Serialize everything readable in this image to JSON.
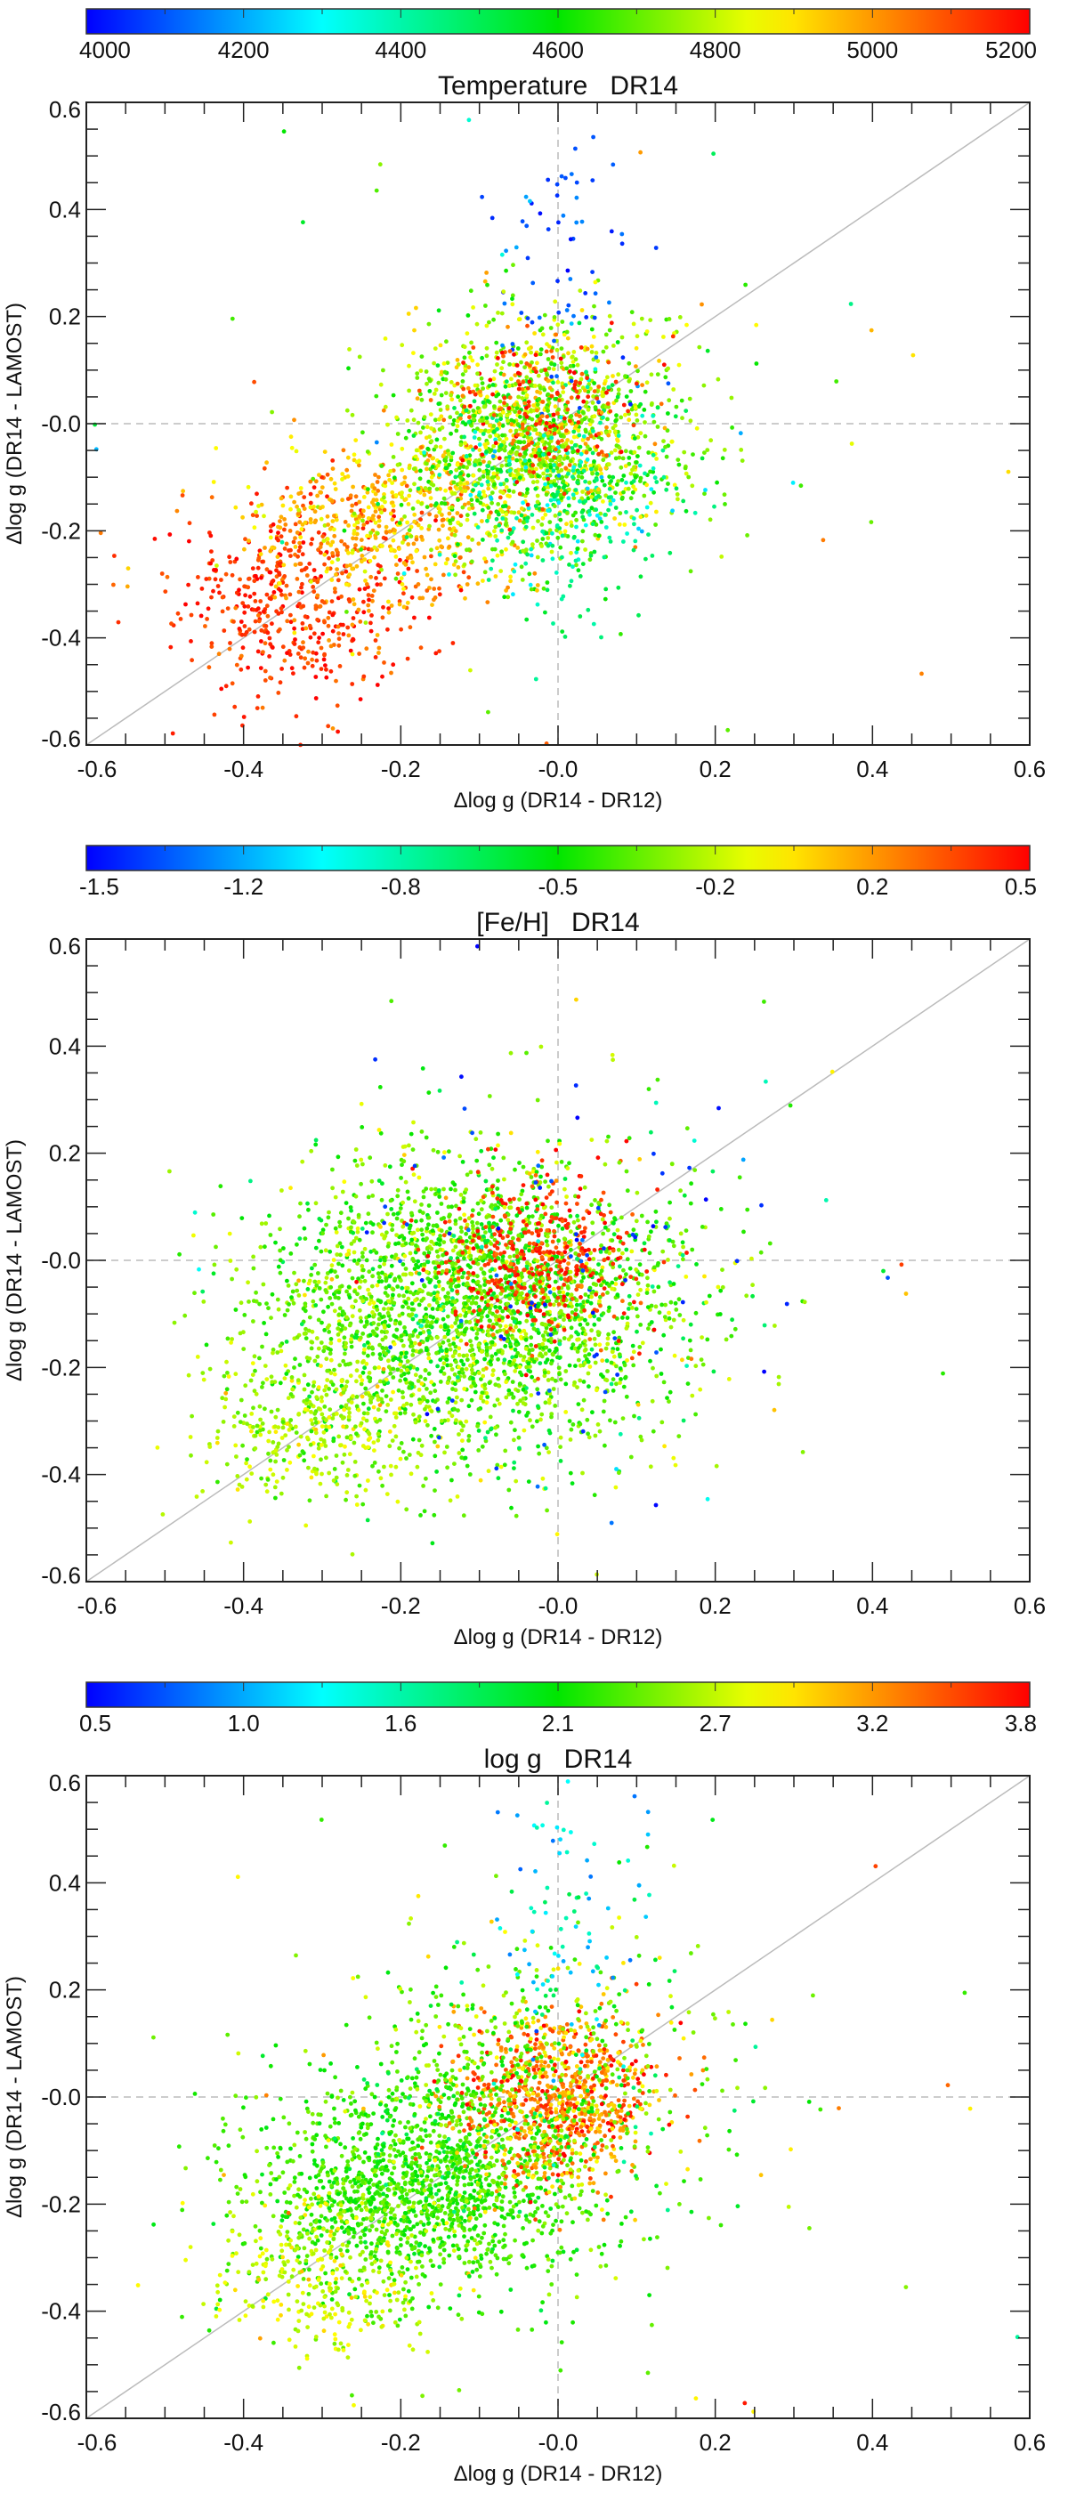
{
  "chart_data": [
    {
      "type": "scatter",
      "title": "Temperature   DR14",
      "xlabel": "Δlog g (DR14 - DR12)",
      "ylabel": "Δlog g (DR14 - LAMOST)",
      "xlim": [
        -0.6,
        0.6
      ],
      "ylim": [
        -0.6,
        0.6
      ],
      "xticks": [
        "-0.6",
        "-0.4",
        "-0.2",
        "-0.0",
        "0.2",
        "0.4",
        "0.6"
      ],
      "yticks": [
        "-0.6",
        "-0.4",
        "-0.2",
        "-0.0",
        "0.2",
        "0.4",
        "0.6"
      ],
      "grid": false,
      "reference_lines": [
        "y = x (solid gray)",
        "x = 0 (dashed gray)",
        "y = 0 (dashed gray)"
      ],
      "colorbar": {
        "label": "Temperature",
        "range": [
          4000,
          5200
        ],
        "ticks": [
          "4000",
          "4200",
          "4400",
          "4600",
          "4800",
          "5000",
          "5200"
        ],
        "placement": "top"
      },
      "clusters": [
        {
          "center": [
            -0.33,
            -0.33
          ],
          "spread": [
            0.08,
            0.09
          ],
          "count": 500,
          "color_value": 5130,
          "color_sd": 60
        },
        {
          "center": [
            -0.22,
            -0.18
          ],
          "spread": [
            0.08,
            0.08
          ],
          "count": 500,
          "color_value": 4950,
          "color_sd": 80
        },
        {
          "center": [
            -0.03,
            -0.03
          ],
          "spread": [
            0.09,
            0.1
          ],
          "count": 1500,
          "color_value": 4750,
          "color_sd": 100
        },
        {
          "center": [
            0.0,
            -0.15
          ],
          "spread": [
            0.07,
            0.1
          ],
          "count": 300,
          "color_value": 4450,
          "color_sd": 100
        },
        {
          "center": [
            0.02,
            0.28
          ],
          "spread": [
            0.05,
            0.15
          ],
          "count": 70,
          "color_value": 4100,
          "color_sd": 60
        },
        {
          "center": [
            -0.03,
            0.02
          ],
          "spread": [
            0.06,
            0.07
          ],
          "count": 200,
          "color_value": 5100,
          "color_sd": 80
        },
        {
          "center": [
            0.0,
            0.0
          ],
          "spread": [
            0.25,
            0.25
          ],
          "count": 100,
          "color_value": 4700,
          "color_sd": 250
        }
      ]
    },
    {
      "type": "scatter",
      "title": "[Fe/H]   DR14",
      "xlabel": "Δlog g (DR14 - DR12)",
      "ylabel": "Δlog g (DR14 - LAMOST)",
      "xlim": [
        -0.6,
        0.6
      ],
      "ylim": [
        -0.6,
        0.6
      ],
      "xticks": [
        "-0.6",
        "-0.4",
        "-0.2",
        "-0.0",
        "0.2",
        "0.4",
        "0.6"
      ],
      "yticks": [
        "-0.6",
        "-0.4",
        "-0.2",
        "-0.0",
        "0.2",
        "0.4",
        "0.6"
      ],
      "grid": false,
      "reference_lines": [
        "y = x (solid gray)",
        "x = 0 (dashed gray)",
        "y = 0 (dashed gray)"
      ],
      "colorbar": {
        "label": "[Fe/H]",
        "range": [
          -1.5,
          0.5
        ],
        "ticks": [
          "-1.5",
          "-1.2",
          "-0.8",
          "-0.5",
          "-0.2",
          "0.2",
          "0.5"
        ],
        "placement": "top"
      },
      "clusters": [
        {
          "center": [
            -0.1,
            -0.08
          ],
          "spread": [
            0.13,
            0.13
          ],
          "count": 2600,
          "color_value": -0.35,
          "color_sd": 0.15
        },
        {
          "center": [
            -0.03,
            0.0
          ],
          "spread": [
            0.06,
            0.08
          ],
          "count": 400,
          "color_value": 0.4,
          "color_sd": 0.08
        },
        {
          "center": [
            -0.3,
            -0.3
          ],
          "spread": [
            0.08,
            0.08
          ],
          "count": 400,
          "color_value": -0.2,
          "color_sd": 0.1
        },
        {
          "center": [
            0.0,
            -0.05
          ],
          "spread": [
            0.15,
            0.2
          ],
          "count": 80,
          "color_value": -1.4,
          "color_sd": 0.08
        },
        {
          "center": [
            0.0,
            0.0
          ],
          "spread": [
            0.25,
            0.25
          ],
          "count": 100,
          "color_value": -0.4,
          "color_sd": 0.3
        }
      ]
    },
    {
      "type": "scatter",
      "title": "log g   DR14",
      "xlabel": "Δlog g (DR14 - DR12)",
      "ylabel": "Δlog g (DR14 - LAMOST)",
      "xlim": [
        -0.6,
        0.6
      ],
      "ylim": [
        -0.6,
        0.6
      ],
      "xticks": [
        "-0.6",
        "-0.4",
        "-0.2",
        "-0.0",
        "0.2",
        "0.4",
        "0.6"
      ],
      "yticks": [
        "-0.6",
        "-0.4",
        "-0.2",
        "-0.0",
        "0.2",
        "0.4",
        "0.6"
      ],
      "grid": false,
      "reference_lines": [
        "y = x (solid gray)",
        "x = 0 (dashed gray)",
        "y = 0 (dashed gray)"
      ],
      "colorbar": {
        "label": "log g",
        "range": [
          0.5,
          3.8
        ],
        "ticks": [
          "0.5",
          "1.0",
          "1.6",
          "2.1",
          "2.7",
          "3.2",
          "3.8"
        ],
        "placement": "top"
      },
      "clusters": [
        {
          "center": [
            -0.18,
            -0.17
          ],
          "spread": [
            0.1,
            0.1
          ],
          "count": 1500,
          "color_value": 2.3,
          "color_sd": 0.15
        },
        {
          "center": [
            -0.3,
            -0.33
          ],
          "spread": [
            0.07,
            0.08
          ],
          "count": 300,
          "color_value": 2.75,
          "color_sd": 0.15
        },
        {
          "center": [
            0.0,
            0.0
          ],
          "spread": [
            0.06,
            0.08
          ],
          "count": 800,
          "color_value": 3.35,
          "color_sd": 0.3
        },
        {
          "center": [
            -0.05,
            0.0
          ],
          "spread": [
            0.12,
            0.15
          ],
          "count": 600,
          "color_value": 2.4,
          "color_sd": 0.3
        },
        {
          "center": [
            0.0,
            0.3
          ],
          "spread": [
            0.05,
            0.15
          ],
          "count": 80,
          "color_value": 1.3,
          "color_sd": 0.3
        },
        {
          "center": [
            0.0,
            0.0
          ],
          "spread": [
            0.25,
            0.25
          ],
          "count": 100,
          "color_value": 2.6,
          "color_sd": 0.5
        }
      ]
    }
  ]
}
